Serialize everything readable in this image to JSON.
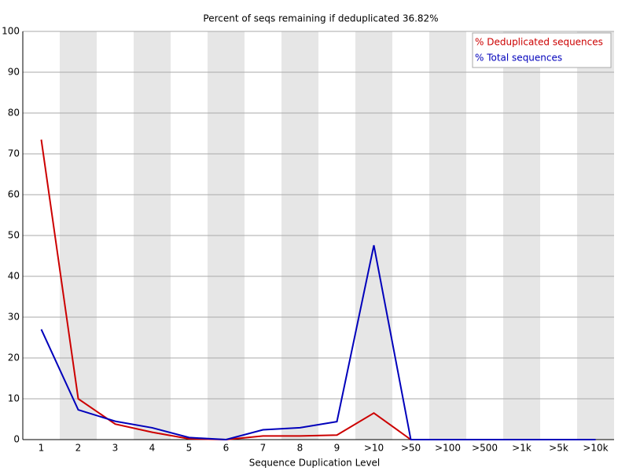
{
  "chart_data": {
    "type": "line",
    "title": "Percent of seqs remaining if deduplicated 36.82%",
    "x_label": "Sequence Duplication Level",
    "categories": [
      "1",
      "2",
      "3",
      "4",
      "5",
      "6",
      "7",
      "8",
      "9",
      ">10",
      ">50",
      ">100",
      ">500",
      ">1k",
      ">5k",
      ">10k"
    ],
    "series": [
      {
        "name": "% Deduplicated sequences",
        "color": "#cc0000",
        "values": [
          73.5,
          10,
          3.8,
          1.8,
          0.2,
          0,
          0.9,
          0.9,
          1.1,
          6.5,
          0,
          0,
          0,
          0,
          0,
          0
        ]
      },
      {
        "name": "% Total sequences",
        "color": "#0000bb",
        "values": [
          27,
          7.3,
          4.5,
          2.9,
          0.5,
          0,
          2.4,
          2.9,
          4.4,
          47.6,
          0,
          0,
          0,
          0,
          0,
          0
        ]
      }
    ],
    "ylim": [
      0,
      100
    ],
    "yticks": [
      0,
      10,
      20,
      30,
      40,
      50,
      60,
      70,
      80,
      90,
      100
    ],
    "grid": true,
    "legend": "top-right"
  }
}
